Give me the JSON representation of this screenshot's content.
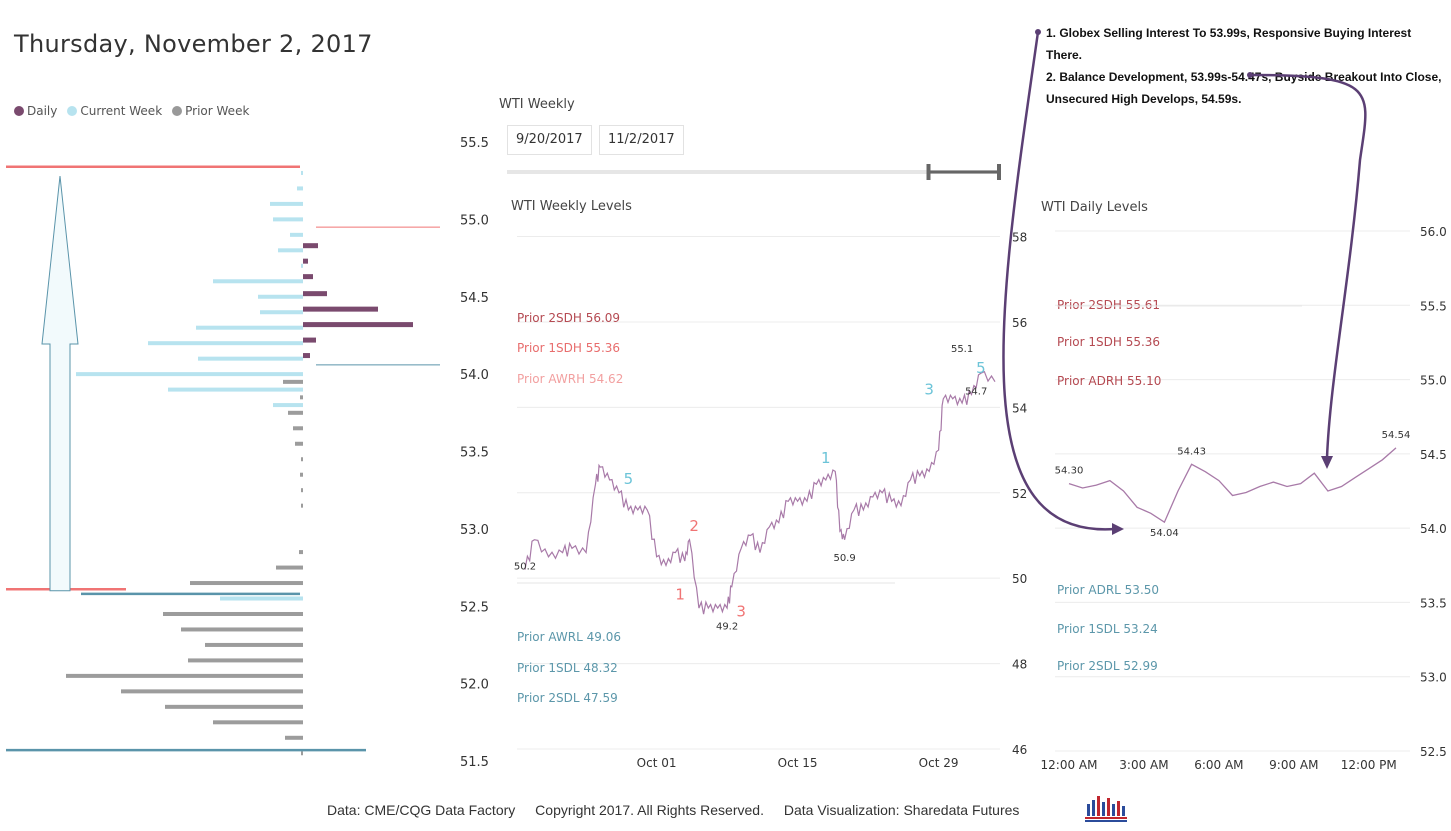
{
  "title": "Thursday, November 2, 2017",
  "legend": [
    {
      "label": "Daily",
      "color": "#7a4a6e"
    },
    {
      "label": "Current Week",
      "color": "#b7e3ef"
    },
    {
      "label": "Prior Week",
      "color": "#999999"
    }
  ],
  "weekly_panel": {
    "title": "WTI Weekly",
    "start_date": "9/20/2017",
    "end_date": "11/2/2017",
    "slider_start_fraction": 0.855,
    "slider_end_fraction": 1.0
  },
  "notes": [
    "1. Globex Selling Interest To 53.99s, Responsive Buying Interest There.",
    "2. Balance Development, 53.99s-54.47s, Buyside Breakout Into Close,",
    "Unsecured High Develops, 54.59s."
  ],
  "footer": {
    "source": "Data: CME/CQG Data Factory",
    "copyright": "Copyright 2017. All Rights Reserved.",
    "viz": "Data Visualization: Sharedata Futures"
  },
  "chart_data": [
    {
      "type": "bar",
      "title": "Volume Profile",
      "orientation": "horizontal",
      "y_axis": {
        "ticks": [
          "55.5",
          "55.0",
          "54.5",
          "54.0",
          "53.5",
          "53.0",
          "52.5",
          "52.0",
          "51.5"
        ],
        "range": [
          51.5,
          55.5
        ]
      },
      "daily_rows": [
        {
          "price": 54.83,
          "value": 0.15
        },
        {
          "price": 54.73,
          "value": 0.05
        },
        {
          "price": 54.63,
          "value": 0.1
        },
        {
          "price": 54.52,
          "value": 0.24
        },
        {
          "price": 54.42,
          "value": 0.75
        },
        {
          "price": 54.32,
          "value": 1.1
        },
        {
          "price": 54.22,
          "value": 0.13
        },
        {
          "price": 54.12,
          "value": 0.07
        }
      ],
      "current_week_rows": [
        {
          "price": 55.3,
          "value": 0.02
        },
        {
          "price": 55.2,
          "value": 0.06
        },
        {
          "price": 55.1,
          "value": 0.33
        },
        {
          "price": 55.0,
          "value": 0.3
        },
        {
          "price": 54.9,
          "value": 0.13
        },
        {
          "price": 54.8,
          "value": 0.25
        },
        {
          "price": 54.7,
          "value": 0.02
        },
        {
          "price": 54.6,
          "value": 0.9
        },
        {
          "price": 54.5,
          "value": 0.45
        },
        {
          "price": 54.4,
          "value": 0.43
        },
        {
          "price": 54.3,
          "value": 1.07
        },
        {
          "price": 54.2,
          "value": 1.55
        },
        {
          "price": 54.1,
          "value": 1.05
        },
        {
          "price": 54.0,
          "value": 2.27
        },
        {
          "price": 53.9,
          "value": 1.35
        },
        {
          "price": 53.8,
          "value": 0.3
        },
        {
          "price": 52.55,
          "value": 0.83
        }
      ],
      "prior_week_rows": [
        {
          "price": 53.95,
          "value": 0.2
        },
        {
          "price": 53.85,
          "value": 0.03
        },
        {
          "price": 53.75,
          "value": 0.15
        },
        {
          "price": 53.65,
          "value": 0.1
        },
        {
          "price": 53.55,
          "value": 0.08
        },
        {
          "price": 53.45,
          "value": 0.02
        },
        {
          "price": 53.35,
          "value": 0.03
        },
        {
          "price": 53.25,
          "value": 0.02
        },
        {
          "price": 53.15,
          "value": 0.02
        },
        {
          "price": 52.85,
          "value": 0.04
        },
        {
          "price": 52.75,
          "value": 0.27
        },
        {
          "price": 52.65,
          "value": 1.13
        },
        {
          "price": 52.55,
          "value": 0.7
        },
        {
          "price": 52.45,
          "value": 1.4
        },
        {
          "price": 52.35,
          "value": 1.22
        },
        {
          "price": 52.25,
          "value": 0.98
        },
        {
          "price": 52.15,
          "value": 1.15
        },
        {
          "price": 52.05,
          "value": 2.37
        },
        {
          "price": 51.95,
          "value": 1.82
        },
        {
          "price": 51.85,
          "value": 1.38
        },
        {
          "price": 51.75,
          "value": 0.9
        },
        {
          "price": 51.65,
          "value": 0.18
        },
        {
          "price": 51.55,
          "value": 0.02
        }
      ],
      "reference_lines": [
        {
          "price": 55.34,
          "color": "#f07474",
          "from": 0.0,
          "to": 0.7
        },
        {
          "price": 54.95,
          "color": "#f07474",
          "from": 1.05,
          "to": 1.4
        },
        {
          "price": 54.06,
          "color": "#5a94aa",
          "from": 1.05,
          "to": 1.4
        },
        {
          "price": 52.61,
          "color": "#f07474",
          "from": 0.0,
          "to": 0.12
        },
        {
          "price": 52.58,
          "color": "#5a94aa",
          "from": 0.25,
          "to": 0.7
        },
        {
          "price": 51.57,
          "color": "#5a94aa",
          "from": 0.0,
          "to": 0.92
        }
      ],
      "arrow": {
        "from_price": 52.6,
        "to_price": 55.28
      }
    },
    {
      "type": "line",
      "title": "WTI Weekly Levels",
      "x_ticks": [
        "Oct 01",
        "Oct 15",
        "Oct 29"
      ],
      "x_tick_positions": [
        0.28,
        0.58,
        0.88
      ],
      "y_ticks": [
        46,
        48,
        50,
        52,
        54,
        56,
        58
      ],
      "ylim": [
        46,
        58.2
      ],
      "levels": [
        {
          "label": "Prior 2SDH 56.09",
          "color": "#b54a52"
        },
        {
          "label": "Prior 1SDH 55.36",
          "color": "#e86d6d"
        },
        {
          "label": "Prior AWRH 54.62",
          "color": "#f2a0a0"
        },
        {
          "label": "Prior AWRL 49.06",
          "color": "#5c97aa"
        },
        {
          "label": "Prior 1SDL 48.32",
          "color": "#5c97aa"
        },
        {
          "label": "Prior 2SDL 47.59",
          "color": "#5c97aa"
        }
      ],
      "series": [
        {
          "name": "WTI",
          "x": [
            0.0,
            0.02,
            0.05,
            0.08,
            0.1,
            0.13,
            0.15,
            0.16,
            0.18,
            0.2,
            0.22,
            0.24,
            0.26,
            0.28,
            0.3,
            0.32,
            0.34,
            0.35,
            0.37,
            0.39,
            0.41,
            0.43,
            0.44,
            0.46,
            0.48,
            0.5,
            0.52,
            0.54,
            0.56,
            0.58,
            0.6,
            0.62,
            0.64,
            0.66,
            0.67,
            0.68,
            0.7,
            0.72,
            0.74,
            0.76,
            0.78,
            0.8,
            0.82,
            0.84,
            0.86,
            0.88,
            0.89,
            0.91,
            0.93,
            0.95,
            0.97,
            1.0
          ],
          "y": [
            50.2,
            50.9,
            50.5,
            50.6,
            50.7,
            50.6,
            52.2,
            52.6,
            52.3,
            52.0,
            51.6,
            51.6,
            51.6,
            50.5,
            50.3,
            50.6,
            50.4,
            50.9,
            49.3,
            49.3,
            49.3,
            49.3,
            49.8,
            50.7,
            51.0,
            50.6,
            51.2,
            51.3,
            51.8,
            51.8,
            51.8,
            52.2,
            52.3,
            52.5,
            51.1,
            50.9,
            51.6,
            51.6,
            51.9,
            52.0,
            51.8,
            51.7,
            52.3,
            52.4,
            52.5,
            53.0,
            54.2,
            54.2,
            54.1,
            54.3,
            54.8,
            54.6
          ]
        }
      ],
      "annotations": [
        {
          "text": "50.2",
          "kind": "price",
          "color": "#333333",
          "x": 0.0,
          "y": 50.2
        },
        {
          "text": "5",
          "kind": "wave",
          "color": "#6cc4d8",
          "x": 0.22,
          "y": 52.2
        },
        {
          "text": "2",
          "kind": "wave",
          "color": "#f07474",
          "x": 0.36,
          "y": 51.1
        },
        {
          "text": "1",
          "kind": "wave",
          "color": "#f07474",
          "x": 0.33,
          "y": 49.5
        },
        {
          "text": "3",
          "kind": "wave",
          "color": "#f07474",
          "x": 0.46,
          "y": 49.1
        },
        {
          "text": "49.2",
          "kind": "price",
          "color": "#333333",
          "x": 0.43,
          "y": 48.8
        },
        {
          "text": "1",
          "kind": "wave",
          "color": "#6cc4d8",
          "x": 0.64,
          "y": 52.7
        },
        {
          "text": "50.9",
          "kind": "price",
          "color": "#333333",
          "x": 0.68,
          "y": 50.4
        },
        {
          "text": "3",
          "kind": "wave",
          "color": "#6cc4d8",
          "x": 0.86,
          "y": 54.3
        },
        {
          "text": "55.1",
          "kind": "price",
          "color": "#333333",
          "x": 0.93,
          "y": 55.3
        },
        {
          "text": "5",
          "kind": "wave",
          "color": "#6cc4d8",
          "x": 0.97,
          "y": 54.8
        },
        {
          "text": "54.7",
          "kind": "price",
          "color": "#333333",
          "x": 0.96,
          "y": 54.3
        }
      ]
    },
    {
      "type": "line",
      "title": "WTI Daily Levels",
      "x_ticks": [
        "12:00 AM",
        "3:00 AM",
        "6:00 AM",
        "9:00 AM",
        "12:00 PM"
      ],
      "x_tick_positions": [
        0.0,
        0.22,
        0.44,
        0.66,
        0.88
      ],
      "y_ticks": [
        "56.0",
        "55.5",
        "55.0",
        "54.5",
        "54.0",
        "53.5",
        "53.0",
        "52.5"
      ],
      "ylim": [
        52.5,
        56.0
      ],
      "levels": [
        {
          "label": "Prior 2SDH 55.61",
          "color": "#b54a52"
        },
        {
          "label": "Prior 1SDH 55.36",
          "color": "#b54a52"
        },
        {
          "label": "Prior ADRH 55.10",
          "color": "#b54a52"
        },
        {
          "label": "Prior ADRL 53.50",
          "color": "#5c97aa"
        },
        {
          "label": "Prior 1SDL 53.24",
          "color": "#5c97aa"
        },
        {
          "label": "Prior 2SDL 52.99",
          "color": "#5c97aa"
        }
      ],
      "series": [
        {
          "name": "Daily",
          "x": [
            0.0,
            0.04,
            0.08,
            0.12,
            0.16,
            0.2,
            0.24,
            0.28,
            0.32,
            0.36,
            0.4,
            0.44,
            0.48,
            0.52,
            0.56,
            0.6,
            0.64,
            0.68,
            0.72,
            0.76,
            0.8,
            0.84,
            0.88,
            0.92,
            0.96
          ],
          "y": [
            54.3,
            54.27,
            54.29,
            54.32,
            54.25,
            54.14,
            54.1,
            54.04,
            54.25,
            54.43,
            54.38,
            54.32,
            54.22,
            54.24,
            54.28,
            54.31,
            54.28,
            54.3,
            54.37,
            54.25,
            54.28,
            54.34,
            54.4,
            54.46,
            54.54
          ]
        }
      ],
      "annotations": [
        {
          "text": "54.30",
          "x": 0.0,
          "y": 54.3
        },
        {
          "text": "54.04",
          "x": 0.28,
          "y": 54.04
        },
        {
          "text": "54.43",
          "x": 0.36,
          "y": 54.43
        },
        {
          "text": "54.54",
          "x": 0.96,
          "y": 54.54
        }
      ]
    }
  ]
}
